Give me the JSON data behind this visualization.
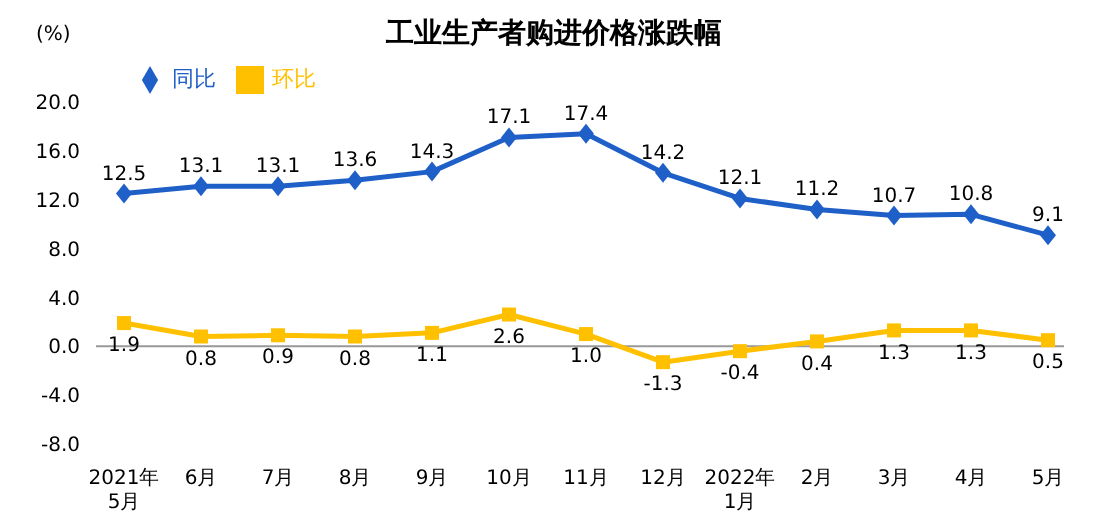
{
  "chart_data": {
    "type": "line",
    "title": "工业生产者购进价格涨跌幅",
    "ylabel": "(%)",
    "categories": [
      "2021年\n5月",
      "6月",
      "7月",
      "8月",
      "9月",
      "10月",
      "11月",
      "12月",
      "2022年\n1月",
      "2月",
      "3月",
      "4月",
      "5月"
    ],
    "series": [
      {
        "name": "同比",
        "color": "#1f5fc8",
        "marker": "diamond",
        "values": [
          12.5,
          13.1,
          13.1,
          13.6,
          14.3,
          17.1,
          17.4,
          14.2,
          12.1,
          11.2,
          10.7,
          10.8,
          9.1
        ],
        "value_labels": [
          "12.5",
          "13.1",
          "13.1",
          "13.6",
          "14.3",
          "17.1",
          "17.4",
          "14.2",
          "12.1",
          "11.2",
          "10.7",
          "10.8",
          "9.1"
        ]
      },
      {
        "name": "环比",
        "color": "#ffc000",
        "marker": "square",
        "values": [
          1.9,
          0.8,
          0.9,
          0.8,
          1.1,
          2.6,
          1.0,
          -1.3,
          -0.4,
          0.4,
          1.3,
          1.3,
          0.5
        ],
        "value_labels": [
          "1.9",
          "0.8",
          "0.9",
          "0.8",
          "1.1",
          "2.6",
          "1.0",
          "-1.3",
          "-0.4",
          "0.4",
          "1.3",
          "1.3",
          "0.5"
        ]
      }
    ],
    "ylim": [
      -8,
      20
    ],
    "yticks": [
      {
        "value": -8,
        "label": "-8.0"
      },
      {
        "value": -4,
        "label": "-4.0"
      },
      {
        "value": 0,
        "label": "0.0"
      },
      {
        "value": 4,
        "label": "4.0"
      },
      {
        "value": 8,
        "label": "8.0"
      },
      {
        "value": 12,
        "label": "12.0"
      },
      {
        "value": 16,
        "label": "16.0"
      },
      {
        "value": 20,
        "label": "20.0"
      }
    ],
    "ref_lines": [
      {
        "axis": "y",
        "value": 0,
        "color": "#999999"
      }
    ],
    "legend": "top left",
    "line_style": "solid",
    "grid": false
  }
}
